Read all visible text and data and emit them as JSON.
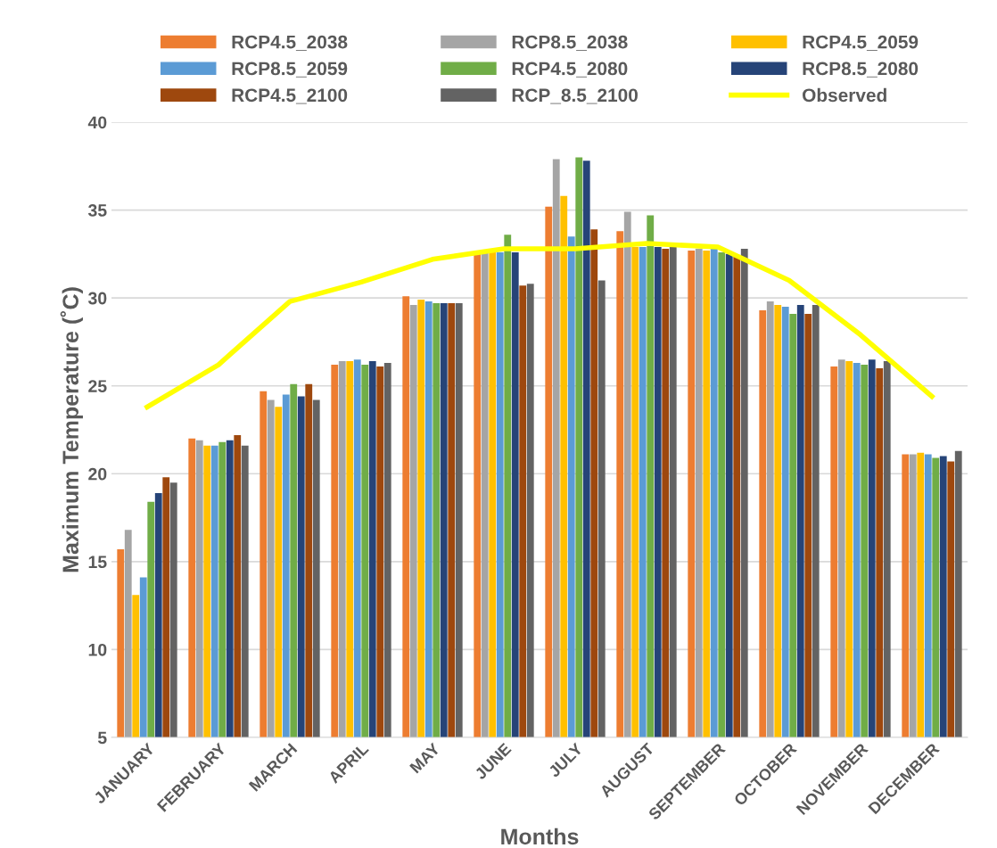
{
  "chart_data": {
    "type": "bar",
    "xlabel": "Months",
    "ylabel": "Maximum Temperature (˚C)",
    "categories": [
      "JANUARY",
      "FEBRUARY",
      "MARCH",
      "APRIL",
      "MAY",
      "JUNE",
      "JULY",
      "AUGUST",
      "SEPTEMBER",
      "OCTOBER",
      "NOVEMBER",
      "DECEMBER"
    ],
    "ylim": [
      5,
      40
    ],
    "yticks": [
      5,
      10,
      15,
      20,
      25,
      30,
      35,
      40
    ],
    "grid": "y",
    "legend": "top",
    "series": [
      {
        "name": "RCP4.5_2038",
        "color": "#ed7d31",
        "values": [
          15.7,
          22.0,
          24.7,
          26.2,
          30.1,
          32.5,
          35.2,
          33.8,
          32.7,
          29.3,
          26.1,
          21.1
        ]
      },
      {
        "name": "RCP8.5_2038",
        "color": "#a5a5a5",
        "values": [
          16.8,
          21.9,
          24.2,
          26.4,
          29.6,
          32.6,
          37.9,
          34.9,
          32.8,
          29.8,
          26.5,
          21.1
        ]
      },
      {
        "name": "RCP4.5_2059",
        "color": "#ffc000",
        "values": [
          13.1,
          21.6,
          23.8,
          26.4,
          29.9,
          32.6,
          35.8,
          32.9,
          32.7,
          29.6,
          26.4,
          21.2
        ]
      },
      {
        "name": "RCP8.5_2059",
        "color": "#5b9bd5",
        "values": [
          14.1,
          21.6,
          24.5,
          26.5,
          29.8,
          32.6,
          33.5,
          32.9,
          32.8,
          29.5,
          26.3,
          21.1
        ]
      },
      {
        "name": "RCP4.5_2080",
        "color": "#70ad47",
        "values": [
          18.4,
          21.8,
          25.1,
          26.2,
          29.7,
          33.6,
          38.0,
          34.7,
          32.6,
          29.1,
          26.2,
          20.9
        ]
      },
      {
        "name": "RCP8.5_2080",
        "color": "#264478",
        "values": [
          18.9,
          21.9,
          24.4,
          26.4,
          29.7,
          32.6,
          37.8,
          32.9,
          32.5,
          29.6,
          26.5,
          21.0
        ]
      },
      {
        "name": "RCP4.5_2100",
        "color": "#9e480e",
        "values": [
          19.8,
          22.2,
          25.1,
          26.1,
          29.7,
          30.7,
          33.9,
          32.8,
          32.4,
          29.1,
          26.0,
          20.7
        ]
      },
      {
        "name": "RCP_8.5_2100",
        "color": "#636363",
        "values": [
          19.5,
          21.6,
          24.2,
          26.3,
          29.7,
          30.8,
          31.0,
          32.9,
          32.8,
          29.6,
          26.4,
          21.3
        ]
      },
      {
        "name": "Observed",
        "type": "line",
        "color": "#ffff00",
        "values": [
          23.8,
          26.2,
          29.8,
          30.9,
          32.2,
          32.8,
          32.8,
          33.1,
          32.9,
          31.0,
          27.9,
          24.4
        ]
      }
    ]
  }
}
